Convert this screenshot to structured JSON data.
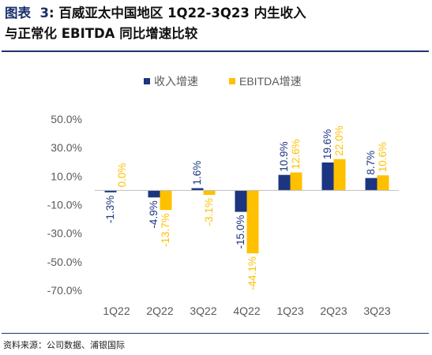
{
  "figure": {
    "label": "图表",
    "number": "3",
    "caption_line1": "百威亚太中国地区 1Q22-3Q23 内生收入",
    "caption_line2": "与正常化 EBITDA 同比增速比较"
  },
  "source": "资料来源：公司数据、浦银国际",
  "chart_data": {
    "type": "bar",
    "categories": [
      "1Q22",
      "2Q22",
      "3Q22",
      "4Q22",
      "1Q23",
      "2Q23",
      "3Q23"
    ],
    "series": [
      {
        "name": "收入增速",
        "values": [
          -1.3,
          -4.9,
          1.6,
          -15.0,
          10.9,
          19.6,
          8.7
        ],
        "labels": [
          "-1.3%",
          "-4.9%",
          "1.6%",
          "-15.0%",
          "10.9%",
          "19.6%",
          "8.7%"
        ],
        "color": "#1c3580"
      },
      {
        "name": "EBITDA增速",
        "values": [
          0.0,
          -13.7,
          -3.1,
          -44.1,
          12.6,
          22.0,
          10.6
        ],
        "labels": [
          "0.0%",
          "-13.7%",
          "-3.1%",
          "-44.1%",
          "12.6%",
          "22.0%",
          "10.6%"
        ],
        "color": "#ffc000"
      }
    ],
    "yticks": [
      "50.0%",
      "30.0%",
      "10.0%",
      "-10.0%",
      "-30.0%",
      "-50.0%",
      "-70.0%"
    ],
    "ytick_values": [
      50,
      30,
      10,
      -10,
      -30,
      -50,
      -70
    ],
    "ylim": [
      -70,
      50
    ],
    "legend_position": "top",
    "grid": false
  }
}
